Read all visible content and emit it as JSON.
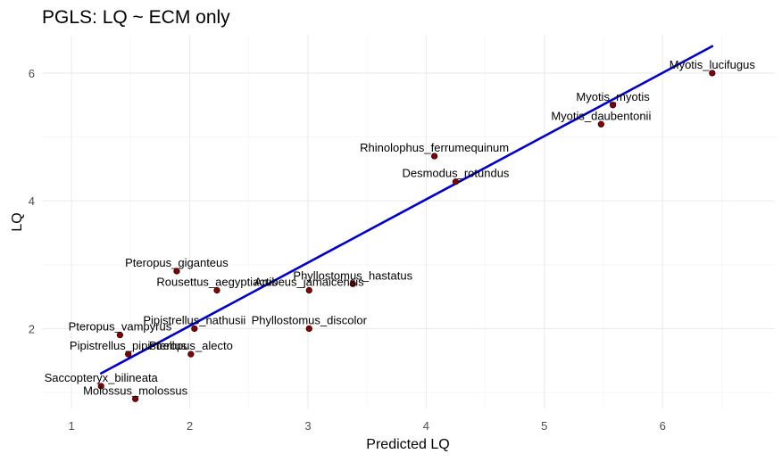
{
  "chart_data": {
    "type": "scatter",
    "title": "PGLS: LQ ~ ECM only",
    "xlabel": "Predicted LQ",
    "ylabel": "LQ",
    "xlim": [
      0.75,
      6.95
    ],
    "ylim": [
      0.75,
      6.6
    ],
    "x_ticks": [
      1,
      2,
      3,
      4,
      5,
      6
    ],
    "y_ticks": [
      2,
      4,
      6
    ],
    "grid": true,
    "point_color": "#8b0000",
    "line_color": "#0000cd",
    "fit_line": {
      "x": [
        1.25,
        6.42
      ],
      "y": [
        1.3,
        6.42
      ]
    },
    "points": [
      {
        "label": "Myotis_lucifugus",
        "x": 6.42,
        "y": 6.0
      },
      {
        "label": "Myotis_myotis",
        "x": 5.58,
        "y": 5.5
      },
      {
        "label": "Myotis_daubentonii",
        "x": 5.48,
        "y": 5.2
      },
      {
        "label": "Rhinolophus_ferrumequinum",
        "x": 4.07,
        "y": 4.7
      },
      {
        "label": "Desmodus_rotundus",
        "x": 4.25,
        "y": 4.3
      },
      {
        "label": "Pteropus_giganteus",
        "x": 1.89,
        "y": 2.9
      },
      {
        "label": "Rousettus_aegyptiacus",
        "x": 2.23,
        "y": 2.6
      },
      {
        "label": "Artibeus_jamaicensis",
        "x": 3.01,
        "y": 2.6
      },
      {
        "label": "Phyllostomus_hastatus",
        "x": 3.38,
        "y": 2.7
      },
      {
        "label": "Pipistrellus_nathusii",
        "x": 2.04,
        "y": 2.0
      },
      {
        "label": "Phyllostomus_discolor",
        "x": 3.01,
        "y": 2.0
      },
      {
        "label": "Pteropus_vampyrus",
        "x": 1.41,
        "y": 1.9
      },
      {
        "label": "Pipistrellus_pipistrellus",
        "x": 1.48,
        "y": 1.6
      },
      {
        "label": "Pteropus_alecto",
        "x": 2.01,
        "y": 1.6
      },
      {
        "label": "Saccopteryx_bilineata",
        "x": 1.25,
        "y": 1.1
      },
      {
        "label": "Molossus_molossus",
        "x": 1.54,
        "y": 0.9
      }
    ]
  }
}
